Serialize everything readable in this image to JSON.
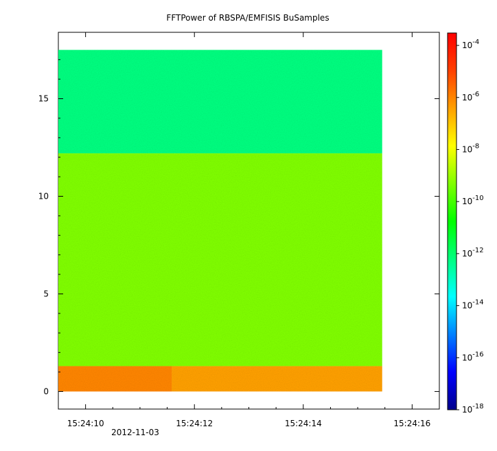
{
  "chart_data": {
    "type": "heatmap",
    "title": "FFTPower of RBSPA/EMFISIS  BuSamples",
    "xlabel": "",
    "ylabel": "",
    "x_date_label": "2012-11-03",
    "x_ticks": [
      "15:24:10",
      "15:24:12",
      "15:24:14",
      "15:24:16"
    ],
    "x_range": [
      "15:24:09.5",
      "15:24:16.5"
    ],
    "x_data_range": [
      "15:24:09.5",
      "15:24:15.45"
    ],
    "y_ticks": [
      "0",
      "5",
      "10",
      "15"
    ],
    "y_range": [
      -0.9,
      18.4
    ],
    "y_data_range": [
      0,
      17.5
    ],
    "colorbar": {
      "scale": "log",
      "range": [
        "1e-18",
        "3e-4"
      ],
      "tick_values": [
        1e-18,
        1e-16,
        1e-14,
        1e-12,
        1e-10,
        1e-08,
        1e-06,
        0.0001
      ],
      "tick_mantissa": [
        "10",
        "10",
        "10",
        "10",
        "10",
        "10",
        "10",
        "10"
      ],
      "tick_exponents": [
        "-18",
        "-16",
        "-14",
        "-12",
        "-10",
        "-8",
        "-6",
        "-4"
      ],
      "colors": [
        "#00008b",
        "#0000ff",
        "#0080ff",
        "#00ffff",
        "#00ff80",
        "#00ff00",
        "#80ff00",
        "#ffff00",
        "#ffa000",
        "#ff4000",
        "#ff0000"
      ]
    },
    "bands": [
      {
        "y_from": 12.2,
        "y_to": 17.5,
        "power": "1e-12"
      },
      {
        "y_from": 1.3,
        "y_to": 12.2,
        "power": "1e-10"
      },
      {
        "y_from": 0,
        "y_to": 1.3,
        "power": "1e-7"
      }
    ],
    "grid": false
  }
}
